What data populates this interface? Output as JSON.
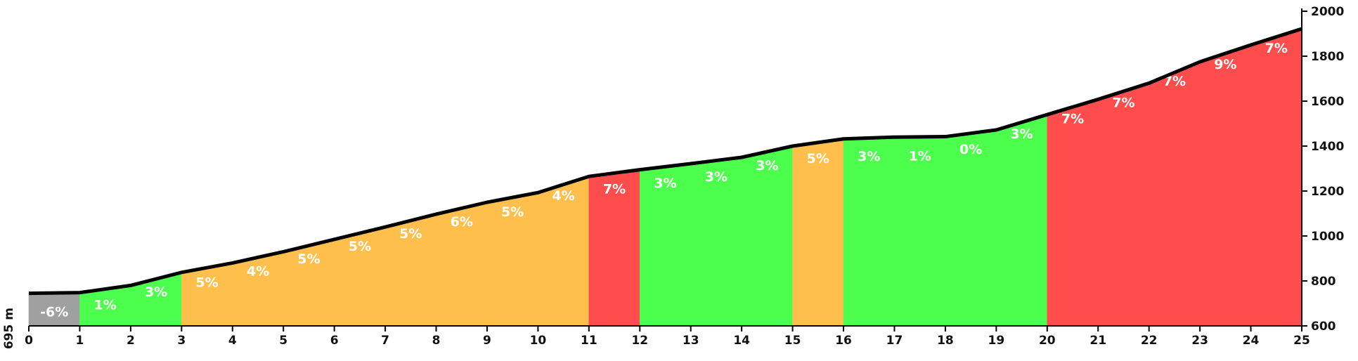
{
  "chart_data": {
    "type": "area",
    "left_label": "695 m",
    "x_ticks": [
      "0",
      "1",
      "2",
      "3",
      "4",
      "5",
      "6",
      "7",
      "8",
      "9",
      "10",
      "11",
      "12",
      "13",
      "14",
      "15",
      "16",
      "17",
      "18",
      "19",
      "20",
      "21",
      "22",
      "23",
      "24",
      "25"
    ],
    "y_ticks": [
      "600",
      "800",
      "1000",
      "1200",
      "1400",
      "1600",
      "1800",
      "2000"
    ],
    "xlim": [
      0,
      25
    ],
    "ylim": [
      600,
      2000
    ],
    "y_axis_position": "right",
    "grid": false,
    "elevation_km": [
      0,
      1,
      2,
      3,
      4,
      5,
      6,
      7,
      8,
      9,
      10,
      11,
      12,
      13,
      14,
      15,
      16,
      17,
      18,
      19,
      20,
      21,
      22,
      23,
      24,
      25
    ],
    "elevation_m": [
      745,
      748,
      780,
      838,
      880,
      930,
      985,
      1040,
      1097,
      1150,
      1193,
      1265,
      1295,
      1322,
      1350,
      1400,
      1432,
      1440,
      1442,
      1472,
      1540,
      1608,
      1680,
      1775,
      1850,
      1922
    ],
    "segments": [
      {
        "label": "-6%",
        "color": "#a0a0a0"
      },
      {
        "label": "1%",
        "color": "#4cff4c"
      },
      {
        "label": "3%",
        "color": "#4cff4c"
      },
      {
        "label": "5%",
        "color": "#ffbf4c"
      },
      {
        "label": "4%",
        "color": "#ffbf4c"
      },
      {
        "label": "5%",
        "color": "#ffbf4c"
      },
      {
        "label": "5%",
        "color": "#ffbf4c"
      },
      {
        "label": "5%",
        "color": "#ffbf4c"
      },
      {
        "label": "6%",
        "color": "#ffbf4c"
      },
      {
        "label": "5%",
        "color": "#ffbf4c"
      },
      {
        "label": "4%",
        "color": "#ffbf4c"
      },
      {
        "label": "7%",
        "color": "#ff4c4c"
      },
      {
        "label": "3%",
        "color": "#4cff4c"
      },
      {
        "label": "3%",
        "color": "#4cff4c"
      },
      {
        "label": "3%",
        "color": "#4cff4c"
      },
      {
        "label": "5%",
        "color": "#ffbf4c"
      },
      {
        "label": "3%",
        "color": "#4cff4c"
      },
      {
        "label": "1%",
        "color": "#4cff4c"
      },
      {
        "label": "0%",
        "color": "#4cff4c"
      },
      {
        "label": "3%",
        "color": "#4cff4c"
      },
      {
        "label": "7%",
        "color": "#ff4c4c"
      },
      {
        "label": "7%",
        "color": "#ff4c4c"
      },
      {
        "label": "7%",
        "color": "#ff4c4c"
      },
      {
        "label": "9%",
        "color": "#ff4c4c"
      },
      {
        "label": "7%",
        "color": "#ff4c4c"
      }
    ],
    "profile_line_color": "#000000",
    "axis_color": "#000000"
  }
}
